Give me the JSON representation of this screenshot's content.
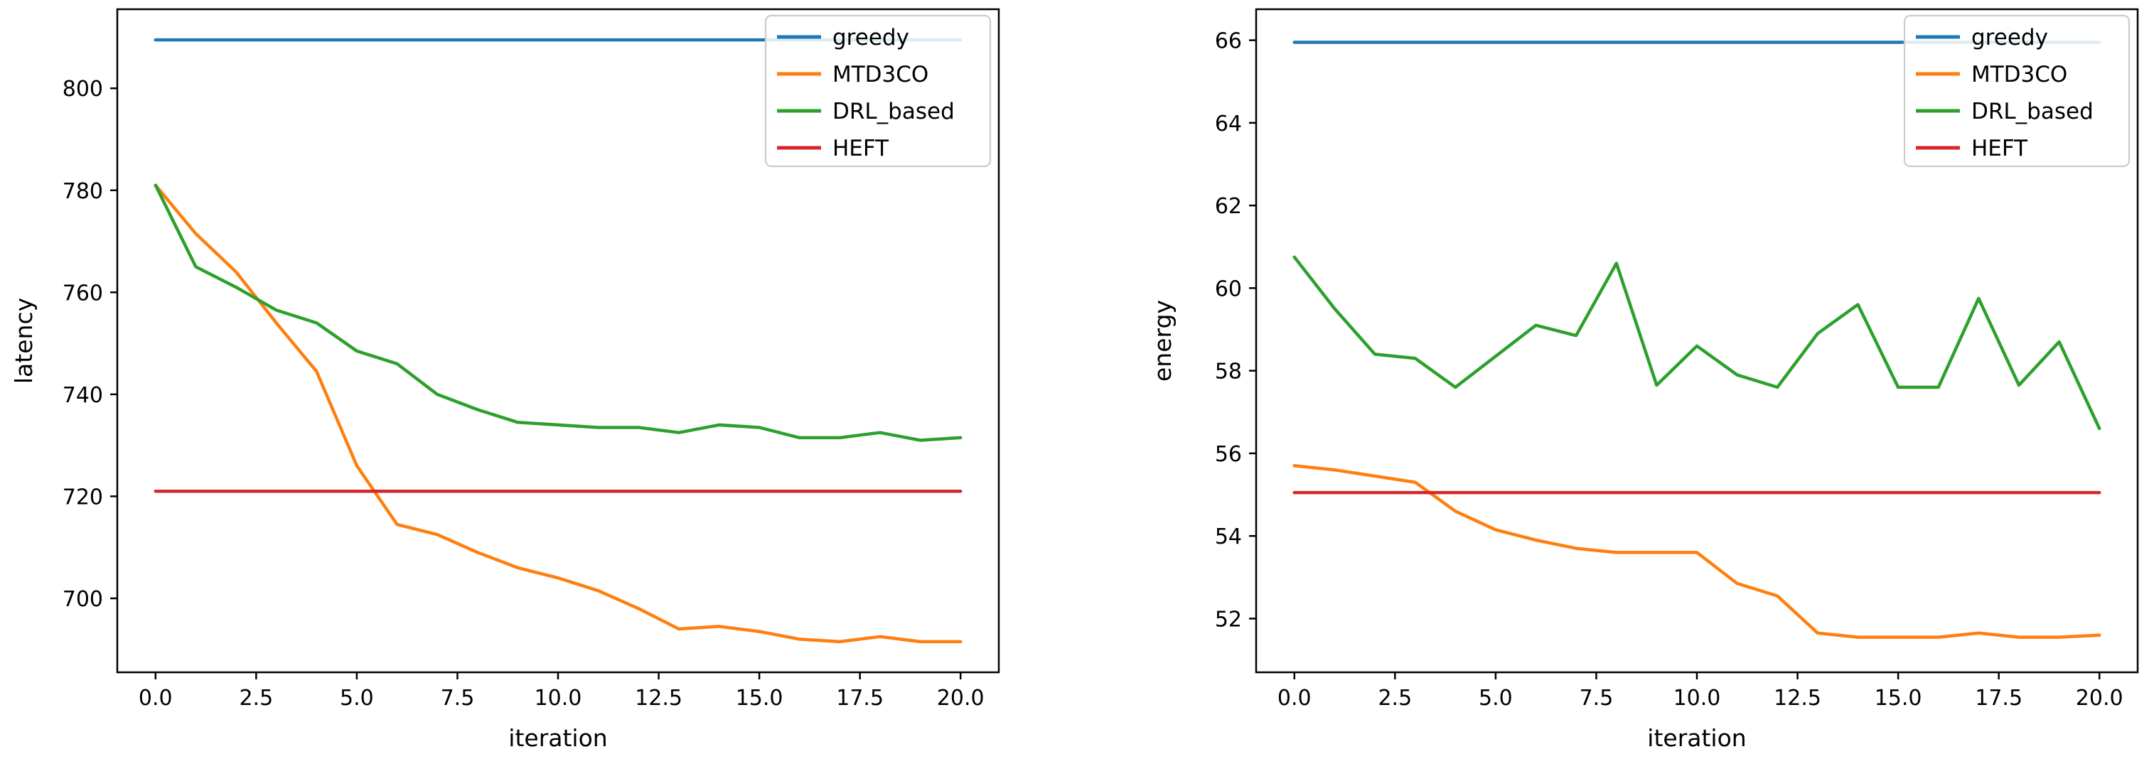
{
  "figure": {
    "background": "#ffffff",
    "palette": {
      "greedy": "#1f77b4",
      "MTD3CO": "#ff7f0e",
      "DRL_based": "#2ca02c",
      "HEFT": "#d62728",
      "spine": "#000000",
      "legend_border": "#cccccc"
    }
  },
  "chart_data": [
    {
      "type": "line",
      "title": "",
      "xlabel": "iteration",
      "ylabel": "latency",
      "grid": false,
      "legend_position": "upper right",
      "legend_entries": [
        "greedy",
        "MTD3CO",
        "DRL_based",
        "HEFT"
      ],
      "xlim": [
        -0.95,
        20.95
      ],
      "ylim": [
        685.5,
        815.5
      ],
      "xticks": [
        0,
        2.5,
        5,
        7.5,
        10,
        12.5,
        15,
        17.5,
        20
      ],
      "xtick_labels": [
        "0.0",
        "2.5",
        "5.0",
        "7.5",
        "10.0",
        "12.5",
        "15.0",
        "17.5",
        "20.0"
      ],
      "yticks": [
        700,
        720,
        740,
        760,
        780,
        800
      ],
      "ytick_labels": [
        "700",
        "720",
        "740",
        "760",
        "780",
        "800"
      ],
      "x": [
        0,
        1,
        2,
        3,
        4,
        5,
        6,
        7,
        8,
        9,
        10,
        11,
        12,
        13,
        14,
        15,
        16,
        17,
        18,
        19,
        20
      ],
      "series": [
        {
          "name": "greedy",
          "color": "#1f77b4",
          "values": [
            809.5,
            809.5,
            809.5,
            809.5,
            809.5,
            809.5,
            809.5,
            809.5,
            809.5,
            809.5,
            809.5,
            809.5,
            809.5,
            809.5,
            809.5,
            809.5,
            809.5,
            809.5,
            809.5,
            809.5,
            809.5
          ]
        },
        {
          "name": "MTD3CO",
          "color": "#ff7f0e",
          "values": [
            781,
            771.5,
            764,
            754,
            744.5,
            726,
            714.5,
            712.5,
            709,
            706,
            704,
            701.5,
            698,
            694,
            694.5,
            693.5,
            692,
            691.5,
            692.5,
            691.5,
            691.5
          ]
        },
        {
          "name": "DRL_based",
          "color": "#2ca02c",
          "values": [
            781,
            765,
            761,
            756.5,
            754,
            748.5,
            746,
            740,
            737,
            734.5,
            734,
            733.5,
            733.5,
            732.5,
            734,
            733.5,
            731.5,
            731.5,
            732.5,
            731,
            731.5
          ]
        },
        {
          "name": "HEFT",
          "color": "#d62728",
          "values": [
            721,
            721,
            721,
            721,
            721,
            721,
            721,
            721,
            721,
            721,
            721,
            721,
            721,
            721,
            721,
            721,
            721,
            721,
            721,
            721,
            721
          ]
        }
      ]
    },
    {
      "type": "line",
      "title": "",
      "xlabel": "iteration",
      "ylabel": "energy",
      "grid": false,
      "legend_position": "upper right",
      "legend_entries": [
        "greedy",
        "MTD3CO",
        "DRL_based",
        "HEFT"
      ],
      "xlim": [
        -0.95,
        20.95
      ],
      "ylim": [
        50.7,
        66.75
      ],
      "xticks": [
        0,
        2.5,
        5,
        7.5,
        10,
        12.5,
        15,
        17.5,
        20
      ],
      "xtick_labels": [
        "0.0",
        "2.5",
        "5.0",
        "7.5",
        "10.0",
        "12.5",
        "15.0",
        "17.5",
        "20.0"
      ],
      "yticks": [
        52,
        54,
        56,
        58,
        60,
        62,
        64,
        66
      ],
      "ytick_labels": [
        "52",
        "54",
        "56",
        "58",
        "60",
        "62",
        "64",
        "66"
      ],
      "x": [
        0,
        1,
        2,
        3,
        4,
        5,
        6,
        7,
        8,
        9,
        10,
        11,
        12,
        13,
        14,
        15,
        16,
        17,
        18,
        19,
        20
      ],
      "series": [
        {
          "name": "greedy",
          "color": "#1f77b4",
          "values": [
            65.95,
            65.95,
            65.95,
            65.95,
            65.95,
            65.95,
            65.95,
            65.95,
            65.95,
            65.95,
            65.95,
            65.95,
            65.95,
            65.95,
            65.95,
            65.95,
            65.95,
            65.95,
            65.95,
            65.95,
            65.95
          ]
        },
        {
          "name": "MTD3CO",
          "color": "#ff7f0e",
          "values": [
            55.7,
            55.6,
            55.45,
            55.3,
            54.6,
            54.15,
            53.9,
            53.7,
            53.6,
            53.6,
            53.6,
            52.85,
            52.55,
            51.65,
            51.55,
            51.55,
            51.55,
            51.65,
            51.55,
            51.55,
            51.6
          ]
        },
        {
          "name": "DRL_based",
          "color": "#2ca02c",
          "values": [
            60.75,
            59.5,
            58.4,
            58.3,
            57.6,
            58.35,
            59.1,
            58.85,
            60.6,
            57.65,
            58.6,
            57.9,
            57.6,
            58.9,
            59.6,
            57.6,
            57.6,
            59.75,
            57.65,
            58.7,
            56.6
          ]
        },
        {
          "name": "HEFT",
          "color": "#d62728",
          "values": [
            55.05,
            55.05,
            55.05,
            55.05,
            55.05,
            55.05,
            55.05,
            55.05,
            55.05,
            55.05,
            55.05,
            55.05,
            55.05,
            55.05,
            55.05,
            55.05,
            55.05,
            55.05,
            55.05,
            55.05,
            55.05
          ]
        }
      ]
    }
  ]
}
